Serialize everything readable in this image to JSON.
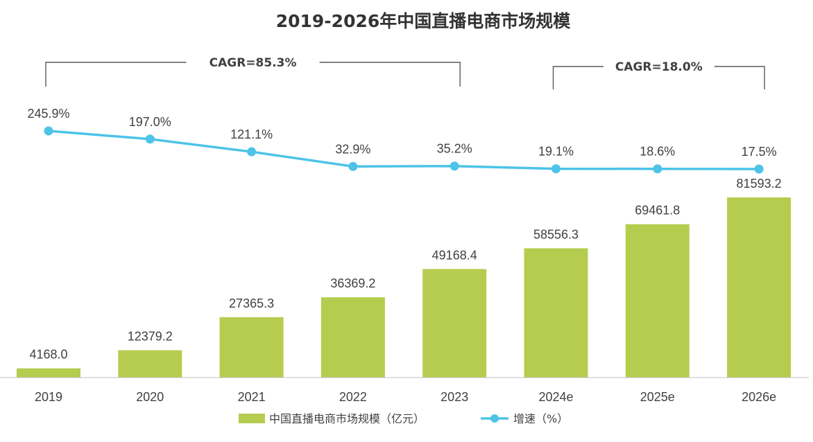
{
  "chart_data": {
    "type": "bar",
    "title": "2019-2026年中国直播电商市场规模",
    "categories": [
      "2019",
      "2020",
      "2021",
      "2022",
      "2023",
      "2024e",
      "2025e",
      "2026e"
    ],
    "series": [
      {
        "name": "中国直播电商市场规模（亿元）",
        "type": "bar",
        "color": "#b5cc4f",
        "values": [
          4168.0,
          12379.2,
          27365.3,
          36369.2,
          49168.4,
          58556.3,
          69461.8,
          81593.2
        ],
        "labels": [
          "4168.0",
          "12379.2",
          "27365.3",
          "36369.2",
          "49168.4",
          "58556.3",
          "69461.8",
          "81593.2"
        ]
      },
      {
        "name": "增速（%）",
        "type": "line",
        "color": "#4dc3e8",
        "values": [
          245.9,
          197.0,
          121.1,
          32.9,
          35.2,
          19.1,
          18.6,
          17.5
        ],
        "labels": [
          "245.9%",
          "197.0%",
          "121.1%",
          "32.9%",
          "35.2%",
          "19.1%",
          "18.6%",
          "17.5%"
        ]
      }
    ],
    "annotations": [
      {
        "text": "CAGR=85.3%",
        "from": "2019",
        "to": "2023"
      },
      {
        "text": "CAGR=18.0%",
        "from": "2024e",
        "to": "2026e"
      }
    ],
    "bar_ylim": [
      0,
      81593.2
    ],
    "line_ylim": [
      17.5,
      245.9
    ],
    "legend_position": "bottom",
    "grid": false,
    "xlabel": "",
    "ylabel": ""
  }
}
